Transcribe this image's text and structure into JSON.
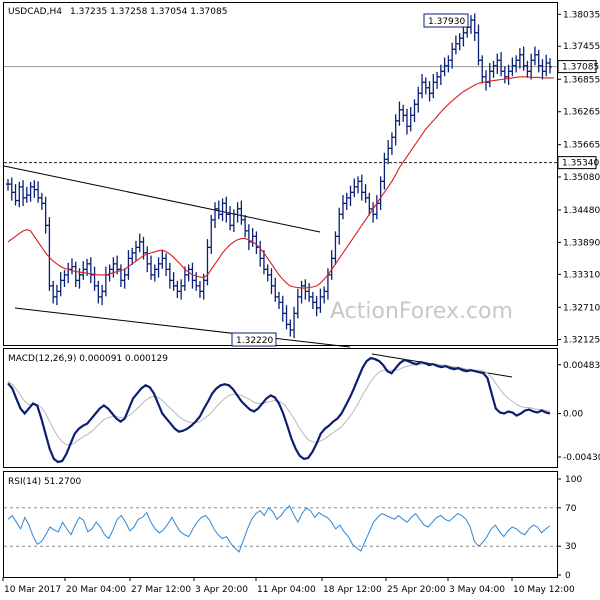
{
  "chart_data": [
    {
      "type": "candlestick-bars",
      "title": "USDCAD,H4",
      "ohlc_text": "1.37235 1.37258 1.37054 1.37085",
      "watermark": "ActionForex.com",
      "y_ticks": [
        "1.38035",
        "1.37455",
        "1.36855",
        "1.36265",
        "1.35665",
        "1.35080",
        "1.34480",
        "1.33890",
        "1.33310",
        "1.32710",
        "1.32125"
      ],
      "y_tick_values": [
        1.38035,
        1.37455,
        1.36855,
        1.36265,
        1.35665,
        1.3508,
        1.3448,
        1.3389,
        1.3331,
        1.3271,
        1.32125
      ],
      "ylim": [
        1.3208,
        1.3815
      ],
      "current_price_label": "1.37085",
      "current_price": 1.37085,
      "resistance_label": "1.35340",
      "resistance": 1.3534,
      "high_label": "1.37930",
      "high": 1.3793,
      "low_label": "1.32220",
      "low": 1.3222,
      "close_series": [
        1.3495,
        1.348,
        1.3465,
        1.349,
        1.347,
        1.3475,
        1.349,
        1.3485,
        1.347,
        1.346,
        1.342,
        1.331,
        1.329,
        1.33,
        1.332,
        1.333,
        1.334,
        1.3345,
        1.332,
        1.333,
        1.334,
        1.335,
        1.333,
        1.331,
        1.329,
        1.33,
        1.333,
        1.334,
        1.335,
        1.334,
        1.332,
        1.333,
        1.336,
        1.337,
        1.338,
        1.339,
        1.337,
        1.335,
        1.333,
        1.334,
        1.335,
        1.336,
        1.334,
        1.332,
        1.331,
        1.33,
        1.331,
        1.333,
        1.334,
        1.332,
        1.331,
        1.33,
        1.332,
        1.338,
        1.343,
        1.345,
        1.344,
        1.346,
        1.344,
        1.342,
        1.344,
        1.345,
        1.343,
        1.341,
        1.339,
        1.34,
        1.338,
        1.336,
        1.334,
        1.333,
        1.331,
        1.329,
        1.328,
        1.326,
        1.324,
        1.323,
        1.326,
        1.329,
        1.331,
        1.33,
        1.329,
        1.328,
        1.327,
        1.329,
        1.33,
        1.333,
        1.336,
        1.34,
        1.344,
        1.346,
        1.347,
        1.348,
        1.349,
        1.35,
        1.348,
        1.347,
        1.345,
        1.344,
        1.346,
        1.35,
        1.354,
        1.356,
        1.358,
        1.361,
        1.363,
        1.362,
        1.36,
        1.362,
        1.364,
        1.366,
        1.368,
        1.367,
        1.366,
        1.368,
        1.369,
        1.37,
        1.371,
        1.372,
        1.374,
        1.375,
        1.376,
        1.377,
        1.378,
        1.3793,
        1.377,
        1.372,
        1.369,
        1.368,
        1.37,
        1.371,
        1.372,
        1.37,
        1.369,
        1.37,
        1.371,
        1.372,
        1.373,
        1.371,
        1.37,
        1.372,
        1.373,
        1.371,
        1.37,
        1.3715,
        1.3708
      ],
      "ma_series": [
        1.339,
        1.3395,
        1.34,
        1.3405,
        1.341,
        1.3412,
        1.341,
        1.34,
        1.339,
        1.338,
        1.337,
        1.3362,
        1.3355,
        1.335,
        1.3345,
        1.3342,
        1.334,
        1.3338,
        1.3336,
        1.3335,
        1.3334,
        1.3333,
        1.3332,
        1.3331,
        1.333,
        1.333,
        1.333,
        1.3332,
        1.3334,
        1.3336,
        1.3338,
        1.334,
        1.3345,
        1.335,
        1.3355,
        1.336,
        1.3365,
        1.3368,
        1.337,
        1.3372,
        1.3374,
        1.3375,
        1.3372,
        1.3368,
        1.3362,
        1.3355,
        1.3348,
        1.334,
        1.3335,
        1.333,
        1.3328,
        1.3326,
        1.3325,
        1.333,
        1.334,
        1.335,
        1.336,
        1.337,
        1.3378,
        1.3385,
        1.339,
        1.3394,
        1.3396,
        1.3396,
        1.3394,
        1.339,
        1.3385,
        1.3378,
        1.337,
        1.336,
        1.335,
        1.334,
        1.333,
        1.3322,
        1.3315,
        1.331,
        1.3308,
        1.3307,
        1.3306,
        1.3306,
        1.3307,
        1.3308,
        1.331,
        1.3315,
        1.3322,
        1.333,
        1.334,
        1.335,
        1.336,
        1.337,
        1.338,
        1.339,
        1.34,
        1.341,
        1.342,
        1.343,
        1.344,
        1.345,
        1.346,
        1.347,
        1.348,
        1.349,
        1.35,
        1.3512,
        1.3525,
        1.3535,
        1.3545,
        1.3555,
        1.3565,
        1.3575,
        1.3585,
        1.3595,
        1.3603,
        1.361,
        1.3618,
        1.3626,
        1.3633,
        1.364,
        1.3646,
        1.3652,
        1.3658,
        1.3663,
        1.3667,
        1.3671,
        1.3675,
        1.3678,
        1.368,
        1.3681,
        1.3682,
        1.3683,
        1.3684,
        1.3685,
        1.3686,
        1.3687,
        1.3688,
        1.3689,
        1.369,
        1.369,
        1.369,
        1.3689,
        1.3689,
        1.3689,
        1.3688,
        1.3688,
        1.3688,
        1.3688
      ]
    },
    {
      "type": "line",
      "title": "MACD(12,26,9) 0.000091 0.000129",
      "y_ticks": [
        "0.004836",
        "0.00",
        "-0.004307"
      ],
      "y_tick_values": [
        0.004836,
        0.0,
        -0.004307
      ],
      "ylim": [
        -0.0051,
        0.0061
      ],
      "macd": [
        0.003,
        0.0025,
        0.0015,
        0.0005,
        0.0,
        0.0005,
        0.001,
        0.0008,
        -0.0005,
        -0.002,
        -0.0035,
        -0.0045,
        -0.0048,
        -0.0047,
        -0.004,
        -0.003,
        -0.002,
        -0.0015,
        -0.0012,
        -0.001,
        -0.0005,
        0.0,
        0.0005,
        0.0008,
        0.0005,
        0.0,
        -0.0005,
        -0.0008,
        -0.0005,
        0.0005,
        0.0015,
        0.002,
        0.0025,
        0.0028,
        0.0026,
        0.002,
        0.001,
        0.0,
        -0.0005,
        -0.001,
        -0.0015,
        -0.0018,
        -0.0017,
        -0.0015,
        -0.0012,
        -0.0008,
        -0.0003,
        0.0005,
        0.0012,
        0.002,
        0.0025,
        0.0028,
        0.0029,
        0.0028,
        0.0024,
        0.0018,
        0.0012,
        0.0008,
        0.0004,
        0.0002,
        0.0005,
        0.001,
        0.0015,
        0.0018,
        0.0016,
        0.001,
        0.0,
        -0.0012,
        -0.0025,
        -0.0035,
        -0.0042,
        -0.0045,
        -0.0044,
        -0.0038,
        -0.003,
        -0.002,
        -0.0015,
        -0.0012,
        -0.0008,
        -0.0005,
        0.0,
        0.0008,
        0.0016,
        0.0025,
        0.0035,
        0.0045,
        0.0052,
        0.0055,
        0.0054,
        0.0052,
        0.0048,
        0.0042,
        0.004,
        0.0045,
        0.005,
        0.0053,
        0.0052,
        0.005,
        0.0049,
        0.0051,
        0.005,
        0.0048,
        0.0049,
        0.0047,
        0.0046,
        0.0047,
        0.0045,
        0.0044,
        0.0045,
        0.0043,
        0.0042,
        0.0043,
        0.0042,
        0.0041,
        0.004,
        0.0035,
        0.002,
        0.0005,
        0.0001,
        0.0,
        0.0002,
        0.0001,
        -0.0002,
        0.0,
        0.0003,
        0.0004,
        0.0002,
        0.0001,
        0.0003,
        0.0001,
        0.0
      ],
      "signal": [
        0.0032,
        0.0029,
        0.0024,
        0.0018,
        0.0012,
        0.0009,
        0.0009,
        0.0009,
        0.0006,
        0.0,
        -0.0008,
        -0.0016,
        -0.0023,
        -0.0028,
        -0.0031,
        -0.0031,
        -0.0029,
        -0.0026,
        -0.0023,
        -0.0021,
        -0.0018,
        -0.0014,
        -0.001,
        -0.0006,
        -0.0004,
        -0.0003,
        -0.0003,
        -0.0004,
        -0.0004,
        -0.0002,
        0.0001,
        0.0005,
        0.0009,
        0.0013,
        0.0016,
        0.0017,
        0.0016,
        0.0013,
        0.0009,
        0.0005,
        0.0001,
        -0.0003,
        -0.0006,
        -0.0008,
        -0.0009,
        -0.0009,
        -0.0008,
        -0.0005,
        -0.0002,
        0.0002,
        0.0007,
        0.0011,
        0.0015,
        0.0018,
        0.0019,
        0.0019,
        0.0018,
        0.0016,
        0.0014,
        0.0011,
        0.001,
        0.001,
        0.0011,
        0.0012,
        0.0013,
        0.0012,
        0.001,
        0.0005,
        -0.0001,
        -0.0008,
        -0.0015,
        -0.0021,
        -0.0026,
        -0.0028,
        -0.0029,
        -0.0027,
        -0.0025,
        -0.0022,
        -0.0019,
        -0.0016,
        -0.0013,
        -0.0008,
        -0.0003,
        0.0003,
        0.001,
        0.0018,
        0.0025,
        0.0032,
        0.0037,
        0.0041,
        0.0043,
        0.0043,
        0.0043,
        0.0043,
        0.0044,
        0.0046,
        0.0047,
        0.0048,
        0.0048,
        0.0049,
        0.0049,
        0.0049,
        0.0049,
        0.0048,
        0.0048,
        0.0048,
        0.0047,
        0.0046,
        0.0046,
        0.0045,
        0.0044,
        0.0044,
        0.0043,
        0.0043,
        0.0042,
        0.004,
        0.0036,
        0.003,
        0.0024,
        0.0019,
        0.0015,
        0.0012,
        0.0009,
        0.0007,
        0.0006,
        0.0006,
        0.0005,
        0.0004,
        0.0004,
        0.0003,
        0.0002
      ]
    },
    {
      "type": "line",
      "title": "RSI(14) 51.2700",
      "y_ticks": [
        "100",
        "70",
        "30",
        "0"
      ],
      "y_tick_values": [
        100,
        70,
        30,
        0
      ],
      "ylim": [
        0,
        100
      ],
      "levels": [
        70,
        30
      ],
      "rsi": [
        58,
        62,
        55,
        48,
        60,
        52,
        40,
        32,
        35,
        42,
        50,
        47,
        45,
        55,
        48,
        42,
        52,
        60,
        57,
        45,
        48,
        55,
        50,
        42,
        38,
        47,
        58,
        62,
        55,
        46,
        50,
        58,
        60,
        65,
        55,
        48,
        44,
        47,
        53,
        60,
        52,
        45,
        42,
        40,
        48,
        55,
        60,
        62,
        57,
        48,
        42,
        38,
        40,
        33,
        28,
        24,
        36,
        48,
        58,
        64,
        67,
        62,
        70,
        66,
        58,
        62,
        68,
        72,
        63,
        55,
        64,
        70,
        67,
        60,
        65,
        62,
        60,
        55,
        48,
        52,
        45,
        40,
        32,
        28,
        25,
        35,
        45,
        55,
        60,
        64,
        62,
        60,
        58,
        62,
        58,
        55,
        60,
        64,
        58,
        52,
        50,
        55,
        60,
        62,
        58,
        56,
        60,
        64,
        62,
        58,
        50,
        35,
        30,
        34,
        40,
        48,
        52,
        45,
        40,
        46,
        50,
        48,
        44,
        42,
        48,
        52,
        50,
        44,
        48,
        51
      ]
    },
    {
      "type": "axis",
      "x_ticks": [
        "10 Mar 2017",
        "20 Mar 04:00",
        "27 Mar 12:00",
        "3 Apr 20:00",
        "11 Apr 04:00",
        "18 Apr 12:00",
        "25 Apr 20:00",
        "3 May 04:00",
        "10 May 12:00"
      ]
    }
  ]
}
